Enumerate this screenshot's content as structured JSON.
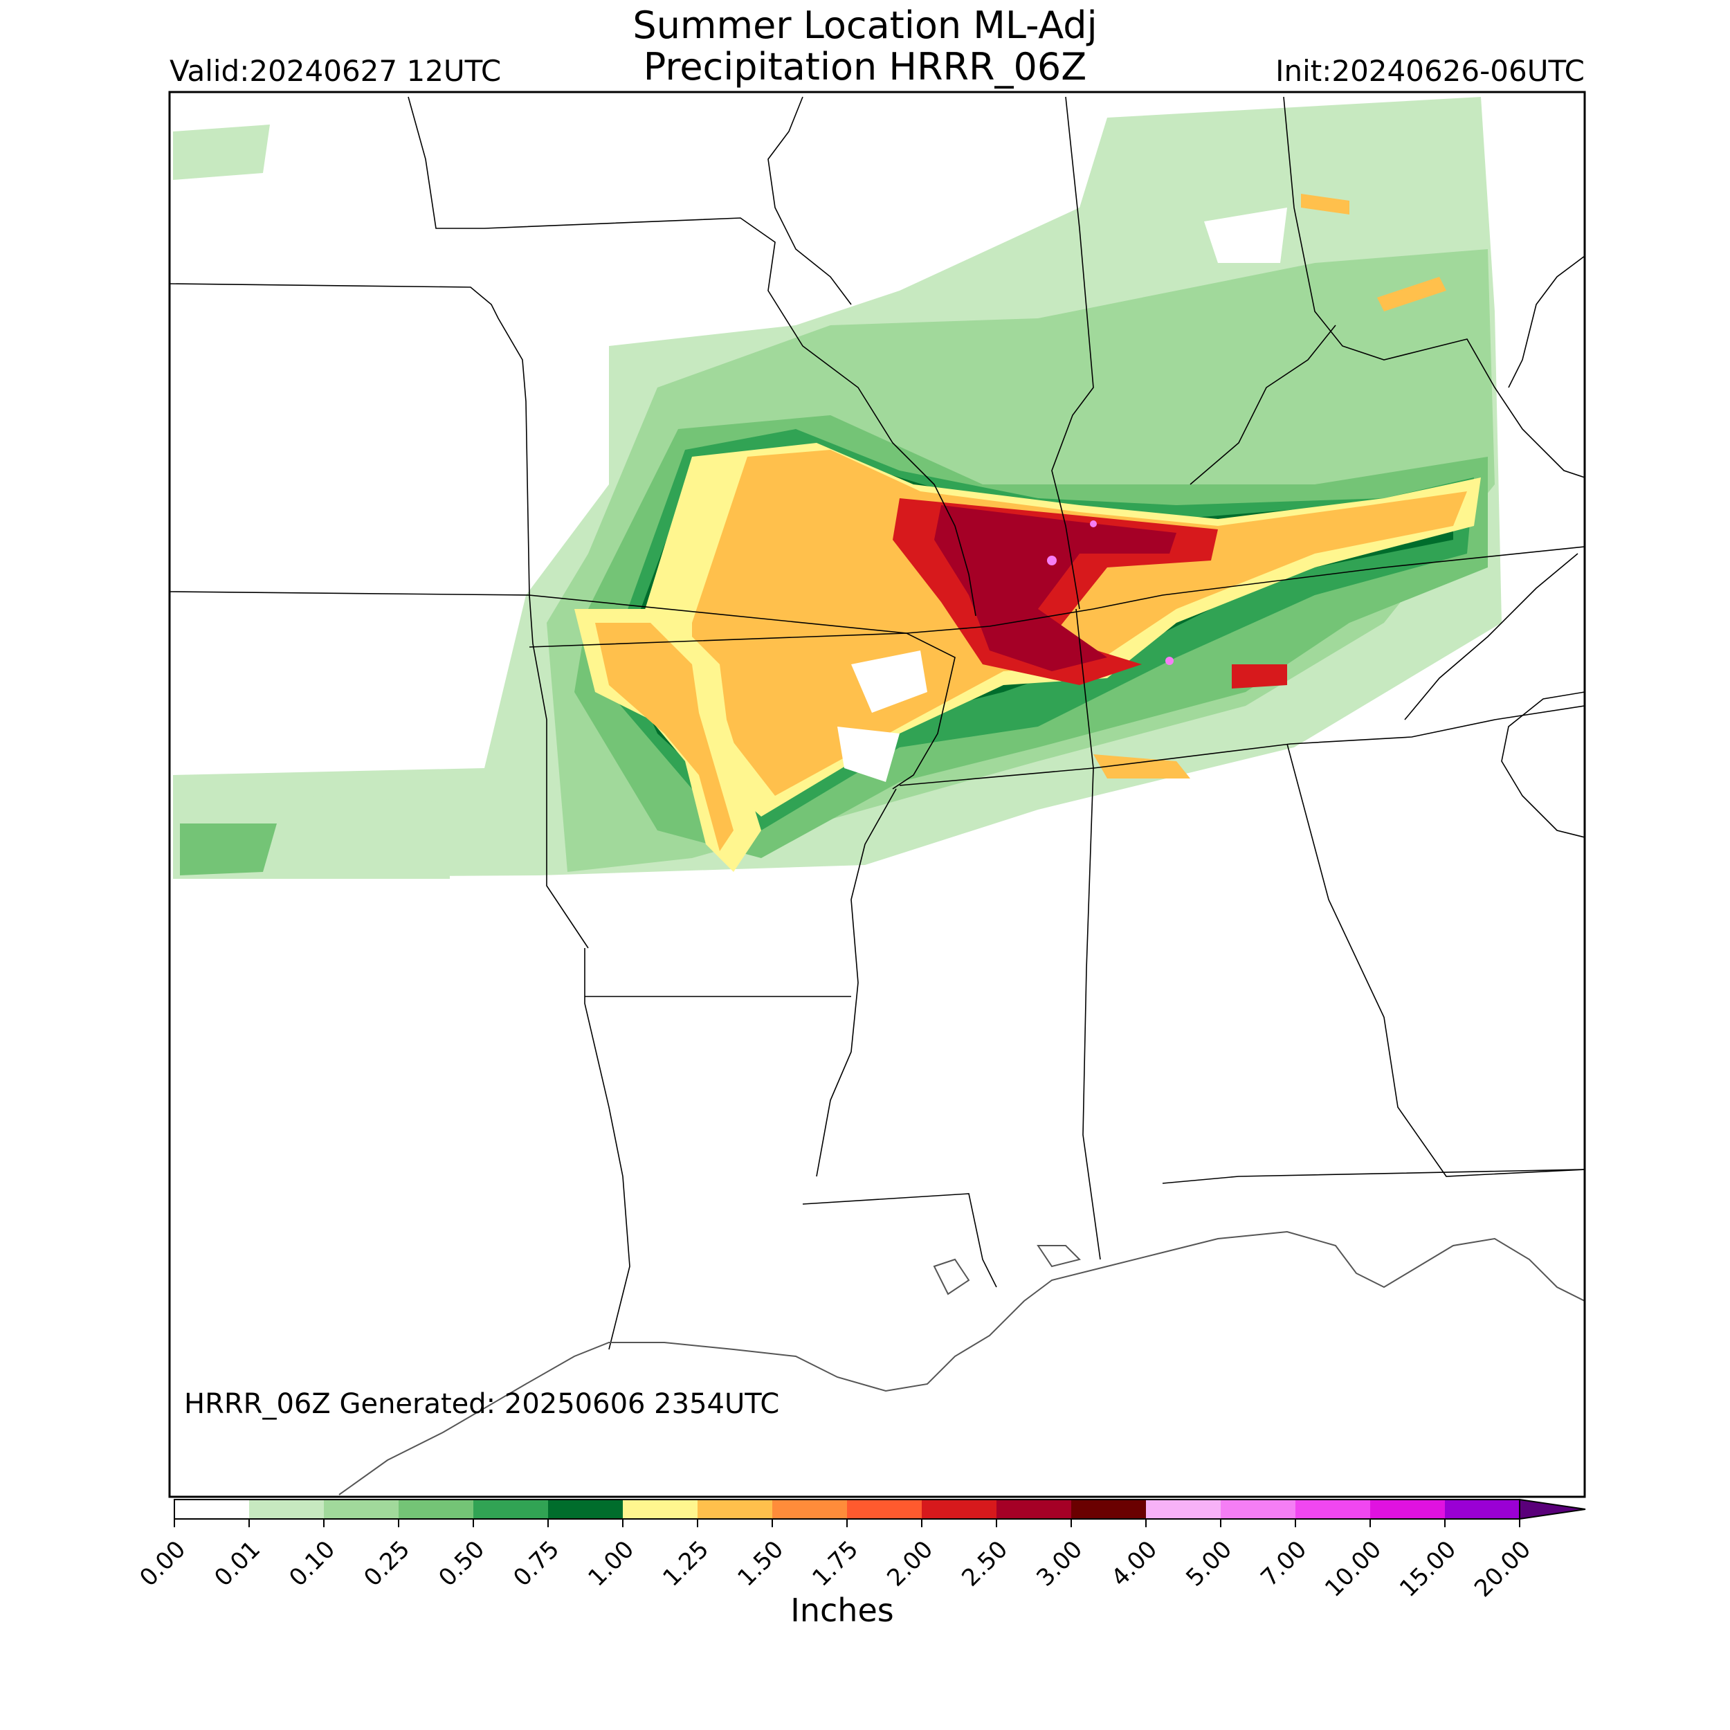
{
  "title": {
    "line1": "Summer Location ML-Adj",
    "line2": "Precipitation HRRR_06Z"
  },
  "valid_label": "Valid:20240627 12UTC",
  "init_label": "Init:20240626-06UTC",
  "generated_label": "HRRR_06Z Generated: 20250606 2354UTC",
  "colorbar": {
    "units": "Inches",
    "ticks": [
      "0.00",
      "0.01",
      "0.10",
      "0.25",
      "0.50",
      "0.75",
      "1.00",
      "1.25",
      "1.50",
      "1.75",
      "2.00",
      "2.50",
      "3.00",
      "4.00",
      "5.00",
      "7.00",
      "10.00",
      "15.00",
      "20.00"
    ],
    "colors": [
      "#ffffff",
      "#c7e9c0",
      "#a1d99b",
      "#74c476",
      "#31a354",
      "#006d2c",
      "#fff68f",
      "#ffc04c",
      "#ff8c3a",
      "#ff5a2e",
      "#d7191c",
      "#a50026",
      "#6a0000",
      "#f7b2f7",
      "#f57ef5",
      "#f047f0",
      "#e012e0",
      "#9a00d4",
      "#5a007a"
    ]
  },
  "precip_colors": {
    "light": "#c7e9c0",
    "light2": "#a1d99b",
    "mid": "#74c476",
    "mid2": "#31a354",
    "dark": "#006d2c",
    "yellow": "#fff68f",
    "orange": "#ffc04c",
    "orange2": "#ff8c3a",
    "red": "#d7191c",
    "darkred": "#a50026",
    "pink": "#f57ef5"
  }
}
